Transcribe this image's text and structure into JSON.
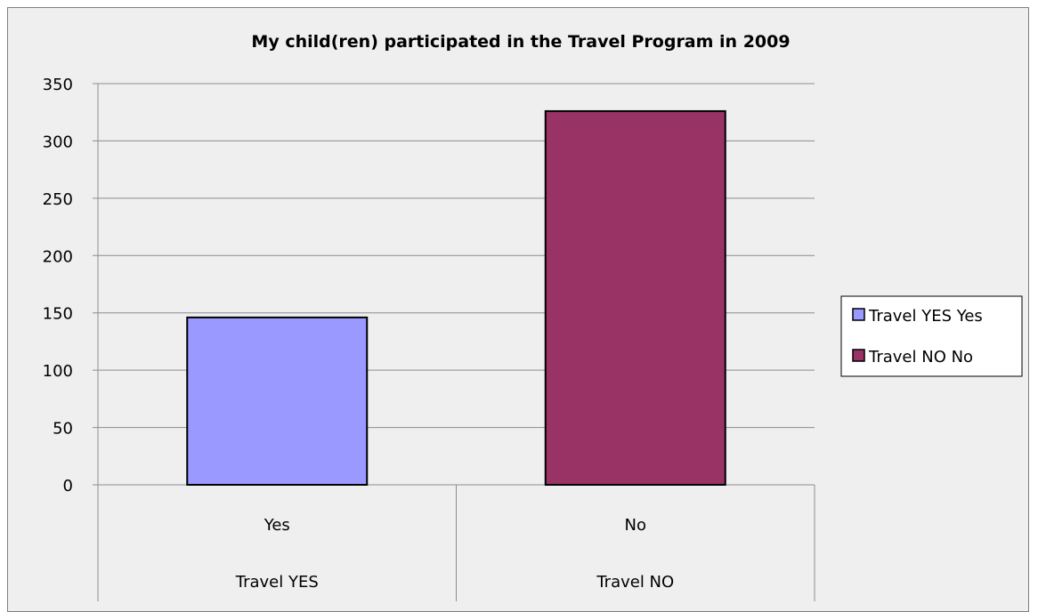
{
  "chart_data": {
    "type": "bar",
    "title": "My child(ren) participated in the Travel Program in 2009",
    "xlabel": "",
    "ylabel": "",
    "ylim": [
      0,
      350
    ],
    "yticks": [
      0,
      50,
      100,
      150,
      200,
      250,
      300,
      350
    ],
    "grid": true,
    "legend_position": "right",
    "categories": [
      {
        "label": "Yes",
        "group": "Travel YES"
      },
      {
        "label": "No",
        "group": "Travel NO"
      }
    ],
    "series": [
      {
        "name": "Travel YES Yes",
        "values": [
          146,
          null
        ],
        "color": "#9999ff"
      },
      {
        "name": "Travel NO No",
        "values": [
          null,
          326
        ],
        "color": "#993366"
      }
    ]
  }
}
